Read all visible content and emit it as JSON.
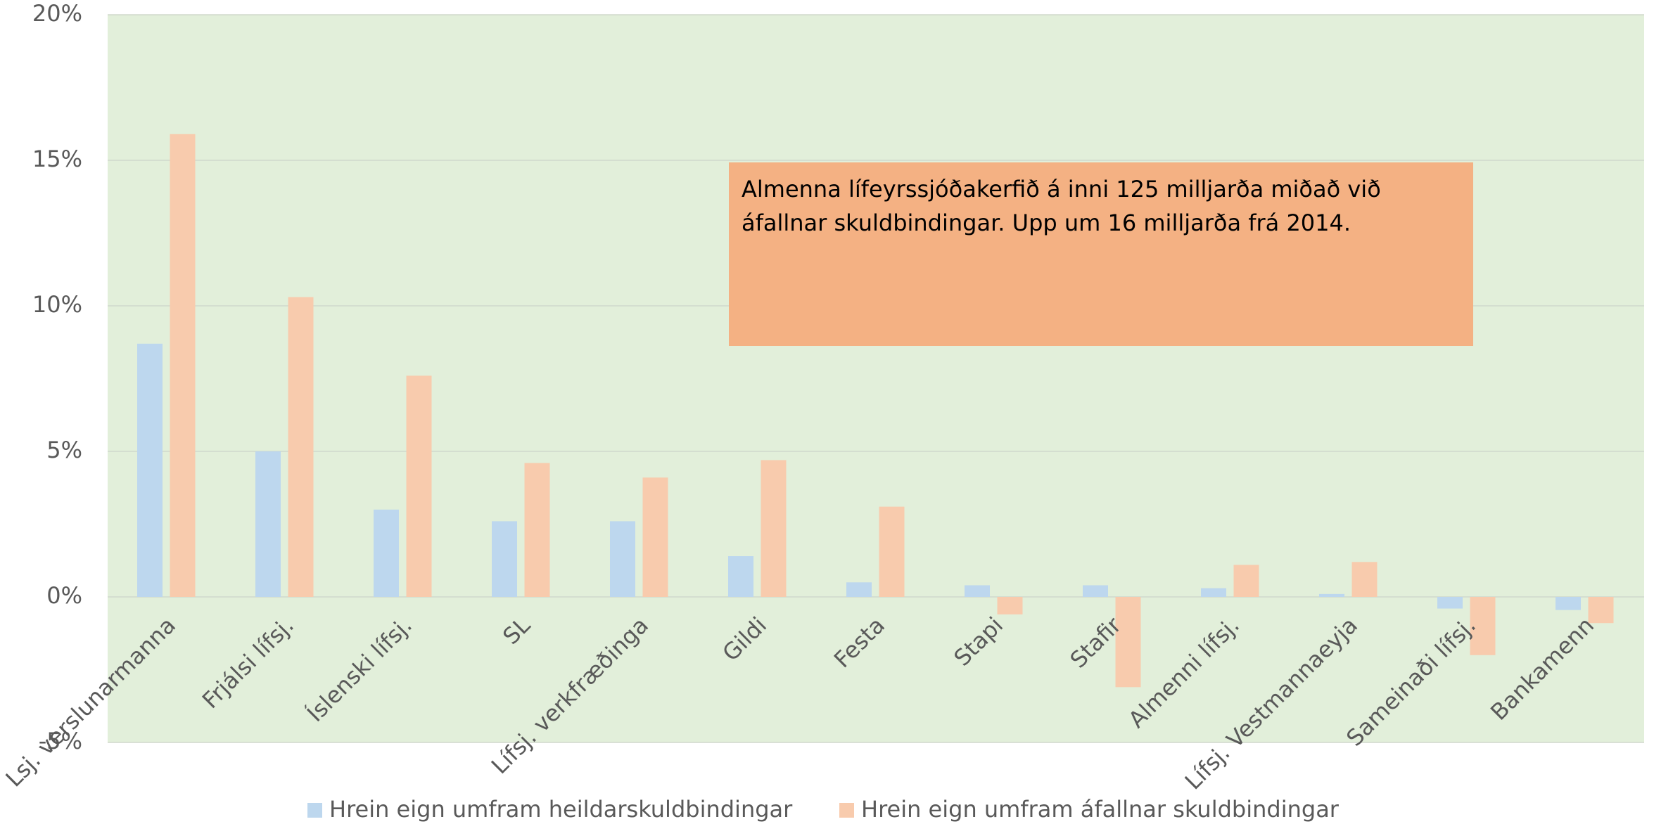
{
  "chart_data": {
    "type": "bar",
    "categories": [
      "Lsj. verslunarmanna",
      "Frjálsi lífsj.",
      "Íslenski lífsj.",
      "SL",
      "Lífsj. verkfræðinga",
      "Gildi",
      "Festa",
      "Stapi",
      "Stafir",
      "Almenni lífsj.",
      "Lífsj. Vestmannaeyja",
      "Sameinaði lífsj.",
      "Bankamenn"
    ],
    "series": [
      {
        "name": "Hrein eign umfram heildarskuldbindingar",
        "color": "#bdd7ee",
        "values": [
          8.7,
          5.0,
          3.0,
          2.6,
          2.6,
          1.4,
          0.5,
          0.4,
          0.4,
          0.3,
          0.1,
          -0.4,
          -0.45
        ]
      },
      {
        "name": "Hrein eign umfram áfallnar skuldbindingar",
        "color": "#f8cbad",
        "values": [
          15.9,
          10.3,
          7.6,
          4.6,
          4.1,
          4.7,
          3.1,
          -0.6,
          -3.1,
          1.1,
          1.2,
          -2.0,
          -0.9
        ]
      }
    ],
    "ylim": [
      -5,
      20
    ],
    "yticks": [
      {
        "value": -5,
        "label": "-5%"
      },
      {
        "value": 0,
        "label": "0%"
      },
      {
        "value": 5,
        "label": "5%"
      },
      {
        "value": 10,
        "label": "10%"
      },
      {
        "value": 15,
        "label": "15%"
      },
      {
        "value": 20,
        "label": "20%"
      }
    ],
    "grid": true,
    "legend": "bottom",
    "annotation": "Almenna lífeyrssjóðakerfið á inni 125 milljarða miðað við áfallnar skuldbindingar. Upp um 16 milljarða frá 2014."
  }
}
